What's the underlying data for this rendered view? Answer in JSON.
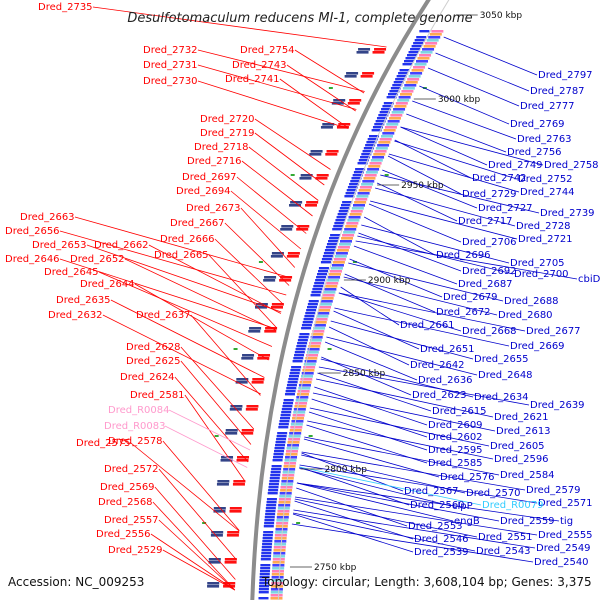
{
  "title": "Desulfotomaculum reducens MI-1, complete genome",
  "accession": "Accession: NC_009253",
  "topology": "Topology: circular; Length: 3,608,104 bp; Genes: 3,375",
  "colors": {
    "left_labels": "#ff0000",
    "right_labels": "#0000cc",
    "rna_labels": "#ff99cc",
    "rna_right": "#33ccff",
    "backbone": "#888888"
  },
  "kbp_marks": [
    "3050 kbp",
    "3000 kbp",
    "2950 kbp",
    "2900 kbp",
    "2850 kbp",
    "2800 kbp",
    "2750 kbp"
  ],
  "left_labels": [
    "Dred_2735",
    "Dred_2732",
    "Dred_2754",
    "Dred_2731",
    "Dred_2743",
    "Dred_2730",
    "Dred_2741",
    "Dred_2720",
    "Dred_2719",
    "Dred_2718",
    "Dred_2716",
    "Dred_2697",
    "Dred_2694",
    "Dred_2673",
    "Dred_2663",
    "Dred_2667",
    "Dred_2656",
    "Dred_2666",
    "Dred_2653",
    "Dred_2662",
    "Dred_2646",
    "Dred_2652",
    "Dred_2665",
    "Dred_2645",
    "Dred_2644",
    "Dred_2635",
    "Dred_2632",
    "Dred_2637",
    "Dred_2628",
    "Dred_2625",
    "Dred_2624",
    "Dred_2581",
    "Dred_2575",
    "Dred_2578",
    "Dred_2572",
    "Dred_2569",
    "Dred_2568",
    "Dred_2557",
    "Dred_2556",
    "Dred_2529"
  ],
  "left_rna_labels": [
    "Dred_R0084",
    "Dred_R0083"
  ],
  "right_labels": [
    "Dred_2797",
    "Dred_2787",
    "Dred_2777",
    "Dred_2769",
    "Dred_2763",
    "Dred_2756",
    "Dred_2749",
    "Dred_2758",
    "Dred_2742",
    "Dred_2752",
    "Dred_2744",
    "Dred_2729",
    "Dred_2727",
    "Dred_2739",
    "Dred_2717",
    "Dred_2728",
    "Dred_2706",
    "Dred_2721",
    "Dred_2696",
    "Dred_2705",
    "Dred_2692",
    "Dred_2700",
    "cbiD",
    "Dred_2687",
    "Dred_2679",
    "Dred_2688",
    "Dred_2672",
    "Dred_2680",
    "Dred_2661",
    "Dred_2668",
    "Dred_2677",
    "Dred_2669",
    "Dred_2651",
    "Dred_2655",
    "Dred_2642",
    "Dred_2636",
    "Dred_2648",
    "Dred_2623",
    "Dred_2634",
    "Dred_2639",
    "Dred_2615",
    "Dred_2621",
    "Dred_2609",
    "Dred_2613",
    "Dred_2602",
    "Dred_2605",
    "Dred_2595",
    "Dred_2596",
    "Dred_2585",
    "Dred_2576",
    "Dred_2584",
    "Dred_2567",
    "Dred_2570",
    "Dred_2579",
    "Dred_2560",
    "clpP",
    "Dred_2571",
    "engB",
    "Dred_2559",
    "tig",
    "Dred_2553",
    "Dred_2551",
    "Dred_2555",
    "Dred_2546",
    "Dred_2549",
    "Dred_2539",
    "Dred_2543",
    "Dred_2540"
  ],
  "right_rna_labels": [
    "Dred_R0079"
  ]
}
